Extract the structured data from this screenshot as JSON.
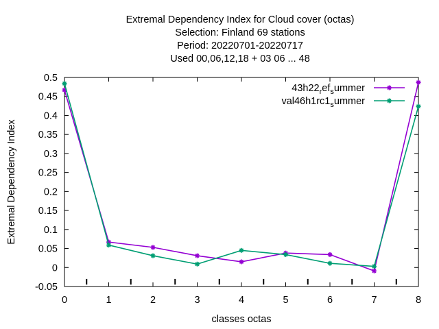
{
  "chart_data": {
    "type": "line",
    "title_lines": [
      "Extremal Dependency Index  for Cloud cover (octas)",
      "Selection: Finland     69 stations",
      "Period: 20220701-20220717",
      "Used  00,06,12,18  + 03 06 ... 48"
    ],
    "xlabel": "classes octas",
    "ylabel": "Extremal Dependency Index",
    "xlim": [
      0,
      8
    ],
    "ylim": [
      -0.05,
      0.5
    ],
    "x_ticks": [
      "0",
      "1",
      "2",
      "3",
      "4",
      "5",
      "6",
      "7",
      "8"
    ],
    "y_ticks": [
      "-0.05",
      "0",
      "0.05",
      "0.1",
      "0.15",
      "0.2",
      "0.25",
      "0.3",
      "0.35",
      "0.4",
      "0.45",
      "0.5"
    ],
    "x": [
      0,
      1,
      2,
      3,
      4,
      5,
      6,
      7,
      8
    ],
    "series": [
      {
        "name": "43h22_ref_summer",
        "legend_parts": [
          "43h22",
          "r",
          "ef",
          "s",
          "ummer"
        ],
        "color": "#9400d3",
        "values": [
          0.467,
          0.067,
          0.053,
          0.031,
          0.015,
          0.038,
          0.034,
          -0.009,
          0.487
        ]
      },
      {
        "name": "val46h1rc1_summer",
        "legend_parts": [
          "val46h1rc1",
          "s",
          "ummer"
        ],
        "color": "#009e73",
        "values": [
          0.484,
          0.059,
          0.031,
          0.009,
          0.045,
          0.034,
          0.011,
          0.003,
          0.424
        ]
      }
    ],
    "grid": false,
    "legend_position": "top-right"
  }
}
